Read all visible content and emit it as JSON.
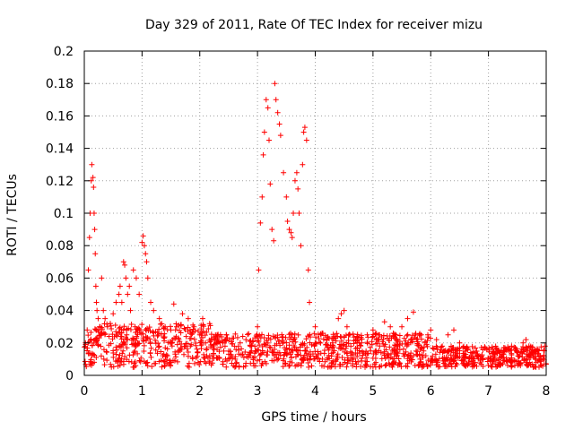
{
  "chart_data": {
    "type": "scatter",
    "title": "Day 329 of 2011, Rate Of TEC Index for receiver mizu",
    "xlabel": "GPS time / hours",
    "ylabel": "ROTI / TECUs",
    "xlim": [
      0,
      8
    ],
    "ylim": [
      0,
      0.2
    ],
    "grid": true,
    "legend": "none",
    "marker": "plus",
    "color": "#ff0000",
    "x_ticks": [
      "0",
      "1",
      "2",
      "3",
      "4",
      "5",
      "6",
      "7",
      "8"
    ],
    "y_ticks": [
      "0",
      "0.02",
      "0.04",
      "0.06",
      "0.08",
      "0.1",
      "0.12",
      "0.14",
      "0.16",
      "0.18",
      "0.2"
    ],
    "series": [
      {
        "name": "ROTI",
        "x": [
          0.02,
          0.05,
          0.07,
          0.09,
          0.1,
          0.12,
          0.13,
          0.15,
          0.16,
          0.17,
          0.18,
          0.19,
          0.2,
          0.21,
          0.22,
          0.24,
          0.27,
          0.3,
          0.33,
          0.36,
          0.4,
          0.45,
          0.5,
          0.55,
          0.6,
          0.62,
          0.65,
          0.68,
          0.7,
          0.72,
          0.75,
          0.78,
          0.8,
          0.85,
          0.9,
          0.95,
          1.0,
          1.02,
          1.04,
          1.06,
          1.08,
          1.1,
          1.15,
          1.2,
          1.3,
          1.4,
          1.5,
          1.55,
          1.6,
          1.7,
          1.8,
          1.9,
          2.0,
          2.05,
          2.1,
          2.2,
          2.3,
          2.4,
          2.5,
          2.6,
          2.7,
          2.8,
          2.9,
          3.0,
          3.02,
          3.05,
          3.08,
          3.1,
          3.12,
          3.15,
          3.18,
          3.2,
          3.22,
          3.25,
          3.28,
          3.3,
          3.32,
          3.35,
          3.38,
          3.4,
          3.45,
          3.5,
          3.52,
          3.55,
          3.58,
          3.6,
          3.62,
          3.65,
          3.68,
          3.7,
          3.72,
          3.75,
          3.78,
          3.8,
          3.82,
          3.85,
          3.88,
          3.9,
          4.0,
          4.1,
          4.2,
          4.3,
          4.4,
          4.45,
          4.5,
          4.55,
          4.6,
          4.7,
          4.8,
          4.9,
          5.0,
          5.1,
          5.2,
          5.3,
          5.4,
          5.5,
          5.6,
          5.7,
          5.8,
          5.9,
          6.0,
          6.1,
          6.2,
          6.3,
          6.4,
          6.5,
          6.6,
          6.7,
          6.8,
          6.9,
          7.0,
          7.1,
          7.2,
          7.3,
          7.4,
          7.5,
          7.6,
          7.65,
          7.7,
          7.8,
          7.9,
          7.98
        ],
        "y": [
          0.02,
          0.028,
          0.065,
          0.085,
          0.1,
          0.12,
          0.13,
          0.122,
          0.116,
          0.1,
          0.09,
          0.075,
          0.055,
          0.045,
          0.04,
          0.035,
          0.03,
          0.06,
          0.04,
          0.035,
          0.03,
          0.032,
          0.038,
          0.045,
          0.05,
          0.055,
          0.045,
          0.07,
          0.068,
          0.06,
          0.05,
          0.055,
          0.04,
          0.065,
          0.06,
          0.05,
          0.082,
          0.086,
          0.08,
          0.075,
          0.07,
          0.06,
          0.045,
          0.04,
          0.035,
          0.03,
          0.028,
          0.044,
          0.03,
          0.038,
          0.035,
          0.03,
          0.025,
          0.035,
          0.02,
          0.022,
          0.025,
          0.02,
          0.015,
          0.018,
          0.02,
          0.022,
          0.018,
          0.03,
          0.065,
          0.094,
          0.11,
          0.136,
          0.15,
          0.17,
          0.165,
          0.145,
          0.118,
          0.09,
          0.083,
          0.18,
          0.17,
          0.162,
          0.155,
          0.148,
          0.125,
          0.11,
          0.095,
          0.09,
          0.088,
          0.085,
          0.1,
          0.12,
          0.125,
          0.115,
          0.1,
          0.08,
          0.13,
          0.15,
          0.153,
          0.145,
          0.065,
          0.045,
          0.03,
          0.025,
          0.022,
          0.02,
          0.035,
          0.038,
          0.04,
          0.03,
          0.025,
          0.022,
          0.02,
          0.025,
          0.028,
          0.025,
          0.033,
          0.03,
          0.025,
          0.03,
          0.035,
          0.039,
          0.025,
          0.02,
          0.028,
          0.022,
          0.018,
          0.025,
          0.028,
          0.02,
          0.015,
          0.012,
          0.012,
          0.01,
          0.01,
          0.012,
          0.014,
          0.016,
          0.018,
          0.014,
          0.02,
          0.022,
          0.018,
          0.015,
          0.012,
          0.018
        ]
      }
    ],
    "baseline_noise": {
      "description": "dense low-level scatter of ROTI values across the whole day",
      "x_range": [
        0,
        8
      ],
      "y_range_typical": [
        0.005,
        0.03
      ]
    }
  }
}
